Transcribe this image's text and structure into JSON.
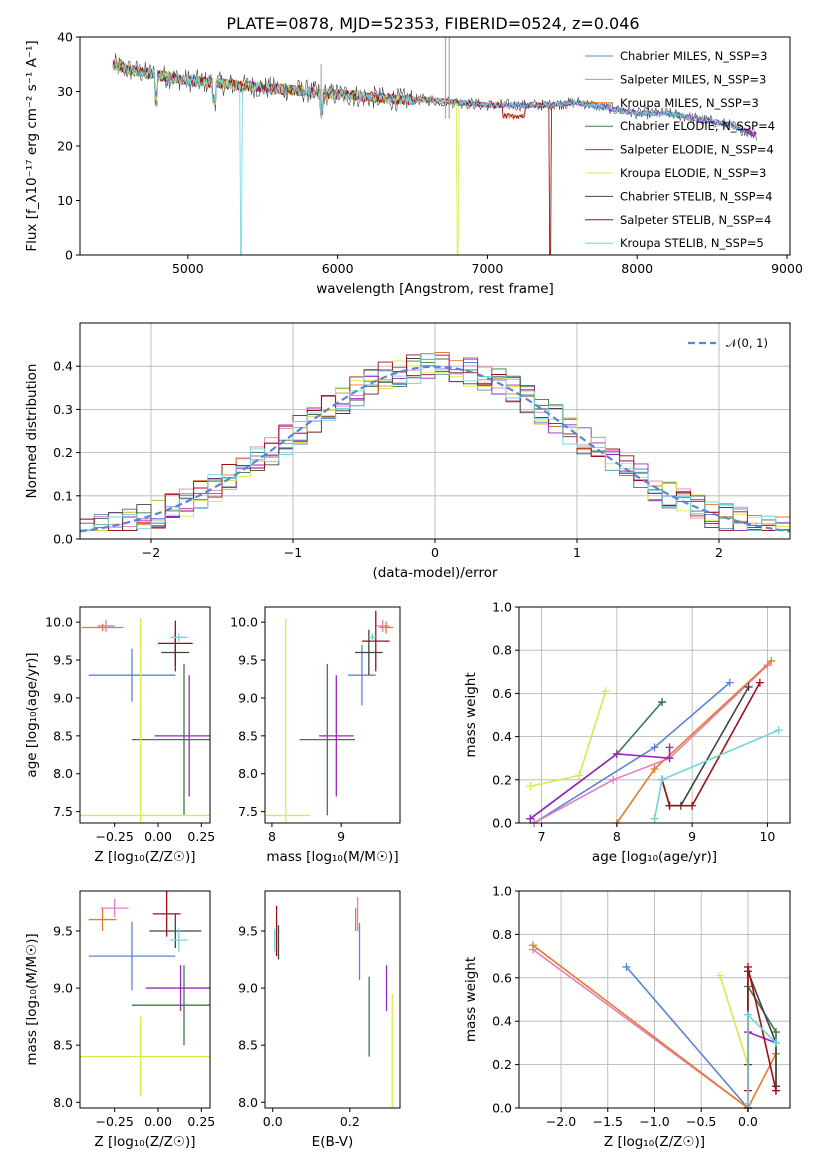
{
  "figure": {
    "title": "PLATE=0878, MJD=52353, FIBERID=0524, z=0.046"
  },
  "colors": {
    "s0": "#5b84d6",
    "s1": "#e37fbf",
    "s2": "#e87b28",
    "s3": "#3d7a48",
    "s4": "#9c27c0",
    "s5": "#d5ec4a",
    "s6": "#444444",
    "s7": "#a00f15",
    "s8": "#6fd6dc"
  },
  "chart_data": [
    {
      "id": "spectrum",
      "type": "line",
      "xlabel": "wavelength [Angstrom, rest frame]",
      "ylabel": "Flux [f_λ10⁻¹⁷ erg cm⁻² s⁻¹ A⁻¹]",
      "xlim": [
        4280,
        9020
      ],
      "ylim": [
        0,
        40
      ],
      "xticks": [
        5000,
        6000,
        7000,
        8000,
        9000
      ],
      "yticks": [
        0,
        10,
        20,
        30,
        40
      ],
      "grid": false,
      "legend": "top-right",
      "series": [
        {
          "name": "Chabrier MILES, N_SSP=3",
          "color_key": "s0"
        },
        {
          "name": "Salpeter MILES, N_SSP=3",
          "color_key": "s1"
        },
        {
          "name": "Kroupa MILES, N_SSP=3",
          "color_key": "s2"
        },
        {
          "name": "Chabrier ELODIE, N_SSP=4",
          "color_key": "s3"
        },
        {
          "name": "Salpeter ELODIE, N_SSP=4",
          "color_key": "s4"
        },
        {
          "name": "Kroupa ELODIE, N_SSP=3",
          "color_key": "s5"
        },
        {
          "name": "Chabrier STELIB, N_SSP=4",
          "color_key": "s6"
        },
        {
          "name": "Salpeter STELIB, N_SSP=4",
          "color_key": "s7"
        },
        {
          "name": "Kroupa STELIB, N_SSP=5",
          "color_key": "s8"
        }
      ],
      "continuum": {
        "x": [
          4500,
          4600,
          4700,
          4800,
          4900,
          5000,
          5200,
          5400,
          5600,
          5800,
          5900,
          6000,
          6200,
          6400,
          6600,
          6800,
          7000,
          7200,
          7400,
          7600,
          7800,
          8000,
          8200,
          8400,
          8600,
          8800
        ],
        "y": [
          35,
          34,
          33.5,
          33,
          32.5,
          32,
          31.5,
          31,
          30.5,
          30,
          29.5,
          29.5,
          29,
          28.5,
          28.5,
          28,
          27.5,
          27.5,
          27.5,
          28,
          27,
          26,
          26,
          25,
          24,
          22
        ]
      }
    },
    {
      "id": "residuals",
      "type": "histogram",
      "xlabel": "(data-model)/error",
      "ylabel": "Normed distribution",
      "xlim": [
        -2.5,
        2.5
      ],
      "ylim": [
        0,
        0.5
      ],
      "xticks": [
        -2,
        -1,
        0,
        1,
        2
      ],
      "yticks": [
        0.0,
        0.1,
        0.2,
        0.3,
        0.4
      ],
      "grid": true,
      "legend": "top-right",
      "normal_curve": {
        "name": "𝒩(0, 1)",
        "mean": 0,
        "sigma": 1
      },
      "bin_width": 0.1
    },
    {
      "id": "age_vs_Z",
      "type": "errorbar",
      "xlabel": "Z [log₁₀(Z/Z☉)]",
      "ylabel": "age  [log₁₀(age/yr)]",
      "xlim": [
        -0.45,
        0.3
      ],
      "ylim": [
        7.35,
        10.2
      ],
      "xticks": [
        -0.25,
        0.0,
        0.25
      ],
      "yticks": [
        7.5,
        8.0,
        8.5,
        9.0,
        9.5,
        10.0
      ],
      "grid": false,
      "points": [
        {
          "c": "s0",
          "x": -0.15,
          "xerr": 0.25,
          "y": 9.3,
          "yerr": 0.35
        },
        {
          "c": "s1",
          "x": -0.3,
          "xerr": 0.05,
          "y": 9.95,
          "yerr": 0.08
        },
        {
          "c": "s2",
          "x": -0.32,
          "xerr": 0.12,
          "y": 9.93,
          "yerr": 0.05
        },
        {
          "c": "s3",
          "x": 0.15,
          "xerr": 0.3,
          "y": 8.45,
          "yerr": 1.0
        },
        {
          "c": "s4",
          "x": 0.18,
          "xerr": 0.2,
          "y": 8.5,
          "yerr": 0.8
        },
        {
          "c": "s5",
          "x": -0.1,
          "xerr": 0.4,
          "y": 7.45,
          "yerr": 2.6
        },
        {
          "c": "s6",
          "x": 0.1,
          "xerr": 0.08,
          "y": 9.6,
          "yerr": 0.25
        },
        {
          "c": "s7",
          "x": 0.1,
          "xerr": 0.1,
          "y": 9.72,
          "yerr": 0.3
        },
        {
          "c": "s8",
          "x": 0.12,
          "xerr": 0.05,
          "y": 9.8,
          "yerr": 0.05
        }
      ]
    },
    {
      "id": "age_vs_mass",
      "type": "errorbar",
      "xlabel": "mass [log₁₀(M/M☉)]",
      "ylabel": "",
      "xlim": [
        7.9,
        9.85
      ],
      "ylim": [
        7.35,
        10.2
      ],
      "xticks": [
        8,
        9
      ],
      "yticks": [
        7.5,
        8.0,
        8.5,
        9.0,
        9.5,
        10.0
      ],
      "grid": false,
      "points": [
        {
          "c": "s0",
          "x": 9.3,
          "xerr": 0.2,
          "y": 9.3,
          "yerr": 0.4
        },
        {
          "c": "s1",
          "x": 9.6,
          "xerr": 0.1,
          "y": 9.95,
          "yerr": 0.08
        },
        {
          "c": "s2",
          "x": 9.65,
          "xerr": 0.1,
          "y": 9.93,
          "yerr": 0.08
        },
        {
          "c": "s3",
          "x": 8.8,
          "xerr": 0.4,
          "y": 8.45,
          "yerr": 1.0
        },
        {
          "c": "s4",
          "x": 8.93,
          "xerr": 0.25,
          "y": 8.5,
          "yerr": 0.8
        },
        {
          "c": "s5",
          "x": 8.2,
          "xerr": 0.35,
          "y": 7.45,
          "yerr": 2.6
        },
        {
          "c": "s6",
          "x": 9.4,
          "xerr": 0.2,
          "y": 9.6,
          "yerr": 0.3
        },
        {
          "c": "s7",
          "x": 9.5,
          "xerr": 0.2,
          "y": 9.75,
          "yerr": 0.4
        },
        {
          "c": "s8",
          "x": 9.45,
          "xerr": 0.05,
          "y": 9.8,
          "yerr": 0.05
        }
      ]
    },
    {
      "id": "cumul_age",
      "type": "line",
      "xlabel": "age  [log₁₀(age/yr)]",
      "ylabel": "mass weight",
      "xlim": [
        6.7,
        10.3
      ],
      "ylim": [
        0,
        1
      ],
      "xticks": [
        7,
        8,
        9,
        10
      ],
      "yticks": [
        0.0,
        0.2,
        0.4,
        0.6,
        0.8,
        1.0
      ],
      "grid": true,
      "series": [
        {
          "c": "s0",
          "x": [
            6.9,
            8.5,
            9.5
          ],
          "y": [
            0.0,
            0.35,
            0.65
          ]
        },
        {
          "c": "s1",
          "x": [
            6.9,
            7.95,
            8.7,
            10.0
          ],
          "y": [
            0.0,
            0.2,
            0.3,
            0.73
          ]
        },
        {
          "c": "s2",
          "x": [
            8.0,
            8.5,
            10.05
          ],
          "y": [
            0.0,
            0.25,
            0.75
          ]
        },
        {
          "c": "s3",
          "x": [
            6.85,
            8.0,
            8.6,
            8.6
          ],
          "y": [
            0.02,
            0.32,
            0.56,
            0.56
          ]
        },
        {
          "c": "s4",
          "x": [
            6.85,
            8.0,
            8.7,
            8.7
          ],
          "y": [
            0.02,
            0.32,
            0.3,
            0.35
          ]
        },
        {
          "c": "s5",
          "x": [
            6.85,
            7.5,
            7.85
          ],
          "y": [
            0.17,
            0.22,
            0.61
          ]
        },
        {
          "c": "s6",
          "x": [
            8.6,
            8.7,
            8.85,
            9.75
          ],
          "y": [
            0.2,
            0.08,
            0.08,
            0.63
          ]
        },
        {
          "c": "s7",
          "x": [
            8.6,
            8.7,
            9.0,
            9.9
          ],
          "y": [
            0.2,
            0.08,
            0.08,
            0.65
          ]
        },
        {
          "c": "s8",
          "x": [
            8.5,
            8.6,
            10.15
          ],
          "y": [
            0.02,
            0.2,
            0.43
          ]
        }
      ]
    },
    {
      "id": "mass_vs_Z",
      "type": "errorbar",
      "xlabel": "Z [log₁₀(Z/Z☉)]",
      "ylabel": "mass [log₁₀(M/M☉)]",
      "xlim": [
        -0.45,
        0.3
      ],
      "ylim": [
        7.95,
        9.85
      ],
      "xticks": [
        -0.25,
        0.0,
        0.25
      ],
      "yticks": [
        8.0,
        8.5,
        9.0,
        9.5
      ],
      "grid": false,
      "points": [
        {
          "c": "s0",
          "x": -0.15,
          "xerr": 0.25,
          "y": 9.28,
          "yerr": 0.3
        },
        {
          "c": "s1",
          "x": -0.25,
          "xerr": 0.08,
          "y": 9.7,
          "yerr": 0.08
        },
        {
          "c": "s2",
          "x": -0.32,
          "xerr": 0.08,
          "y": 9.6,
          "yerr": 0.1
        },
        {
          "c": "s3",
          "x": 0.15,
          "xerr": 0.3,
          "y": 8.85,
          "yerr": 0.35
        },
        {
          "c": "s4",
          "x": 0.13,
          "xerr": 0.2,
          "y": 9.0,
          "yerr": 0.2
        },
        {
          "c": "s5",
          "x": -0.1,
          "xerr": 0.4,
          "y": 8.4,
          "yerr": 0.35
        },
        {
          "c": "s6",
          "x": 0.1,
          "xerr": 0.15,
          "y": 9.5,
          "yerr": 0.15
        },
        {
          "c": "s7",
          "x": 0.05,
          "xerr": 0.08,
          "y": 9.65,
          "yerr": 0.2
        },
        {
          "c": "s8",
          "x": 0.12,
          "xerr": 0.05,
          "y": 9.42,
          "yerr": 0.1
        }
      ]
    },
    {
      "id": "mass_vs_ebv",
      "type": "errorbar",
      "xlabel": "E(B-V)",
      "ylabel": "",
      "xlim": [
        -0.02,
        0.33
      ],
      "ylim": [
        7.95,
        9.85
      ],
      "xticks": [
        0.0,
        0.2
      ],
      "yticks": [
        8.0,
        8.5,
        9.0,
        9.5
      ],
      "grid": false,
      "points": [
        {
          "c": "s0",
          "x": 0.225,
          "xerr": 0,
          "y": 9.32,
          "yerr": 0.25
        },
        {
          "c": "s1",
          "x": 0.22,
          "xerr": 0,
          "y": 9.65,
          "yerr": 0.15
        },
        {
          "c": "s2",
          "x": 0.215,
          "xerr": 0,
          "y": 9.6,
          "yerr": 0.1
        },
        {
          "c": "s3",
          "x": 0.25,
          "xerr": 0,
          "y": 8.75,
          "yerr": 0.35
        },
        {
          "c": "s4",
          "x": 0.295,
          "xerr": 0,
          "y": 9.0,
          "yerr": 0.2
        },
        {
          "c": "s5",
          "x": 0.31,
          "xerr": 0,
          "y": 8.45,
          "yerr": 0.5
        },
        {
          "c": "s6",
          "x": 0.015,
          "xerr": 0,
          "y": 9.4,
          "yerr": 0.15
        },
        {
          "c": "s7",
          "x": 0.01,
          "xerr": 0,
          "y": 9.5,
          "yerr": 0.22
        },
        {
          "c": "s8",
          "x": 0.005,
          "xerr": 0,
          "y": 9.42,
          "yerr": 0.1
        }
      ]
    },
    {
      "id": "cumul_Z",
      "type": "line",
      "xlabel": "Z [log₁₀(Z/Z☉)]",
      "ylabel": "mass weight",
      "xlim": [
        -2.45,
        0.45
      ],
      "ylim": [
        0,
        1
      ],
      "xticks": [
        -2.0,
        -1.5,
        -1.0,
        -0.5,
        0.0
      ],
      "yticks": [
        0.0,
        0.2,
        0.4,
        0.6,
        0.8,
        1.0
      ],
      "grid": true,
      "series": [
        {
          "c": "s0",
          "x": [
            -1.3,
            0.0
          ],
          "y": [
            0.65,
            0.0
          ]
        },
        {
          "c": "s1",
          "x": [
            -2.3,
            0.0
          ],
          "y": [
            0.73,
            0.0
          ]
        },
        {
          "c": "s2",
          "x": [
            -2.3,
            0.0,
            0.3,
            0.3
          ],
          "y": [
            0.75,
            0.0,
            0.25,
            0.25
          ]
        },
        {
          "c": "s3",
          "x": [
            0.0,
            0.0,
            0.3,
            0.3
          ],
          "y": [
            0.0,
            0.56,
            0.35,
            0.1
          ]
        },
        {
          "c": "s4",
          "x": [
            0.0,
            0.0,
            0.3
          ],
          "y": [
            0.0,
            0.35,
            0.3
          ]
        },
        {
          "c": "s5",
          "x": [
            -0.3,
            0.0
          ],
          "y": [
            0.61,
            0.2
          ]
        },
        {
          "c": "s6",
          "x": [
            0.0,
            0.0,
            0.3,
            0.3
          ],
          "y": [
            0.2,
            0.63,
            0.3,
            0.1
          ]
        },
        {
          "c": "s7",
          "x": [
            0.0,
            0.0,
            0.3,
            0.3
          ],
          "y": [
            0.08,
            0.65,
            0.08,
            0.08
          ]
        },
        {
          "c": "s8",
          "x": [
            0.0,
            0.0,
            0.3,
            0.3
          ],
          "y": [
            0.02,
            0.43,
            0.3,
            0.3
          ]
        }
      ]
    }
  ]
}
